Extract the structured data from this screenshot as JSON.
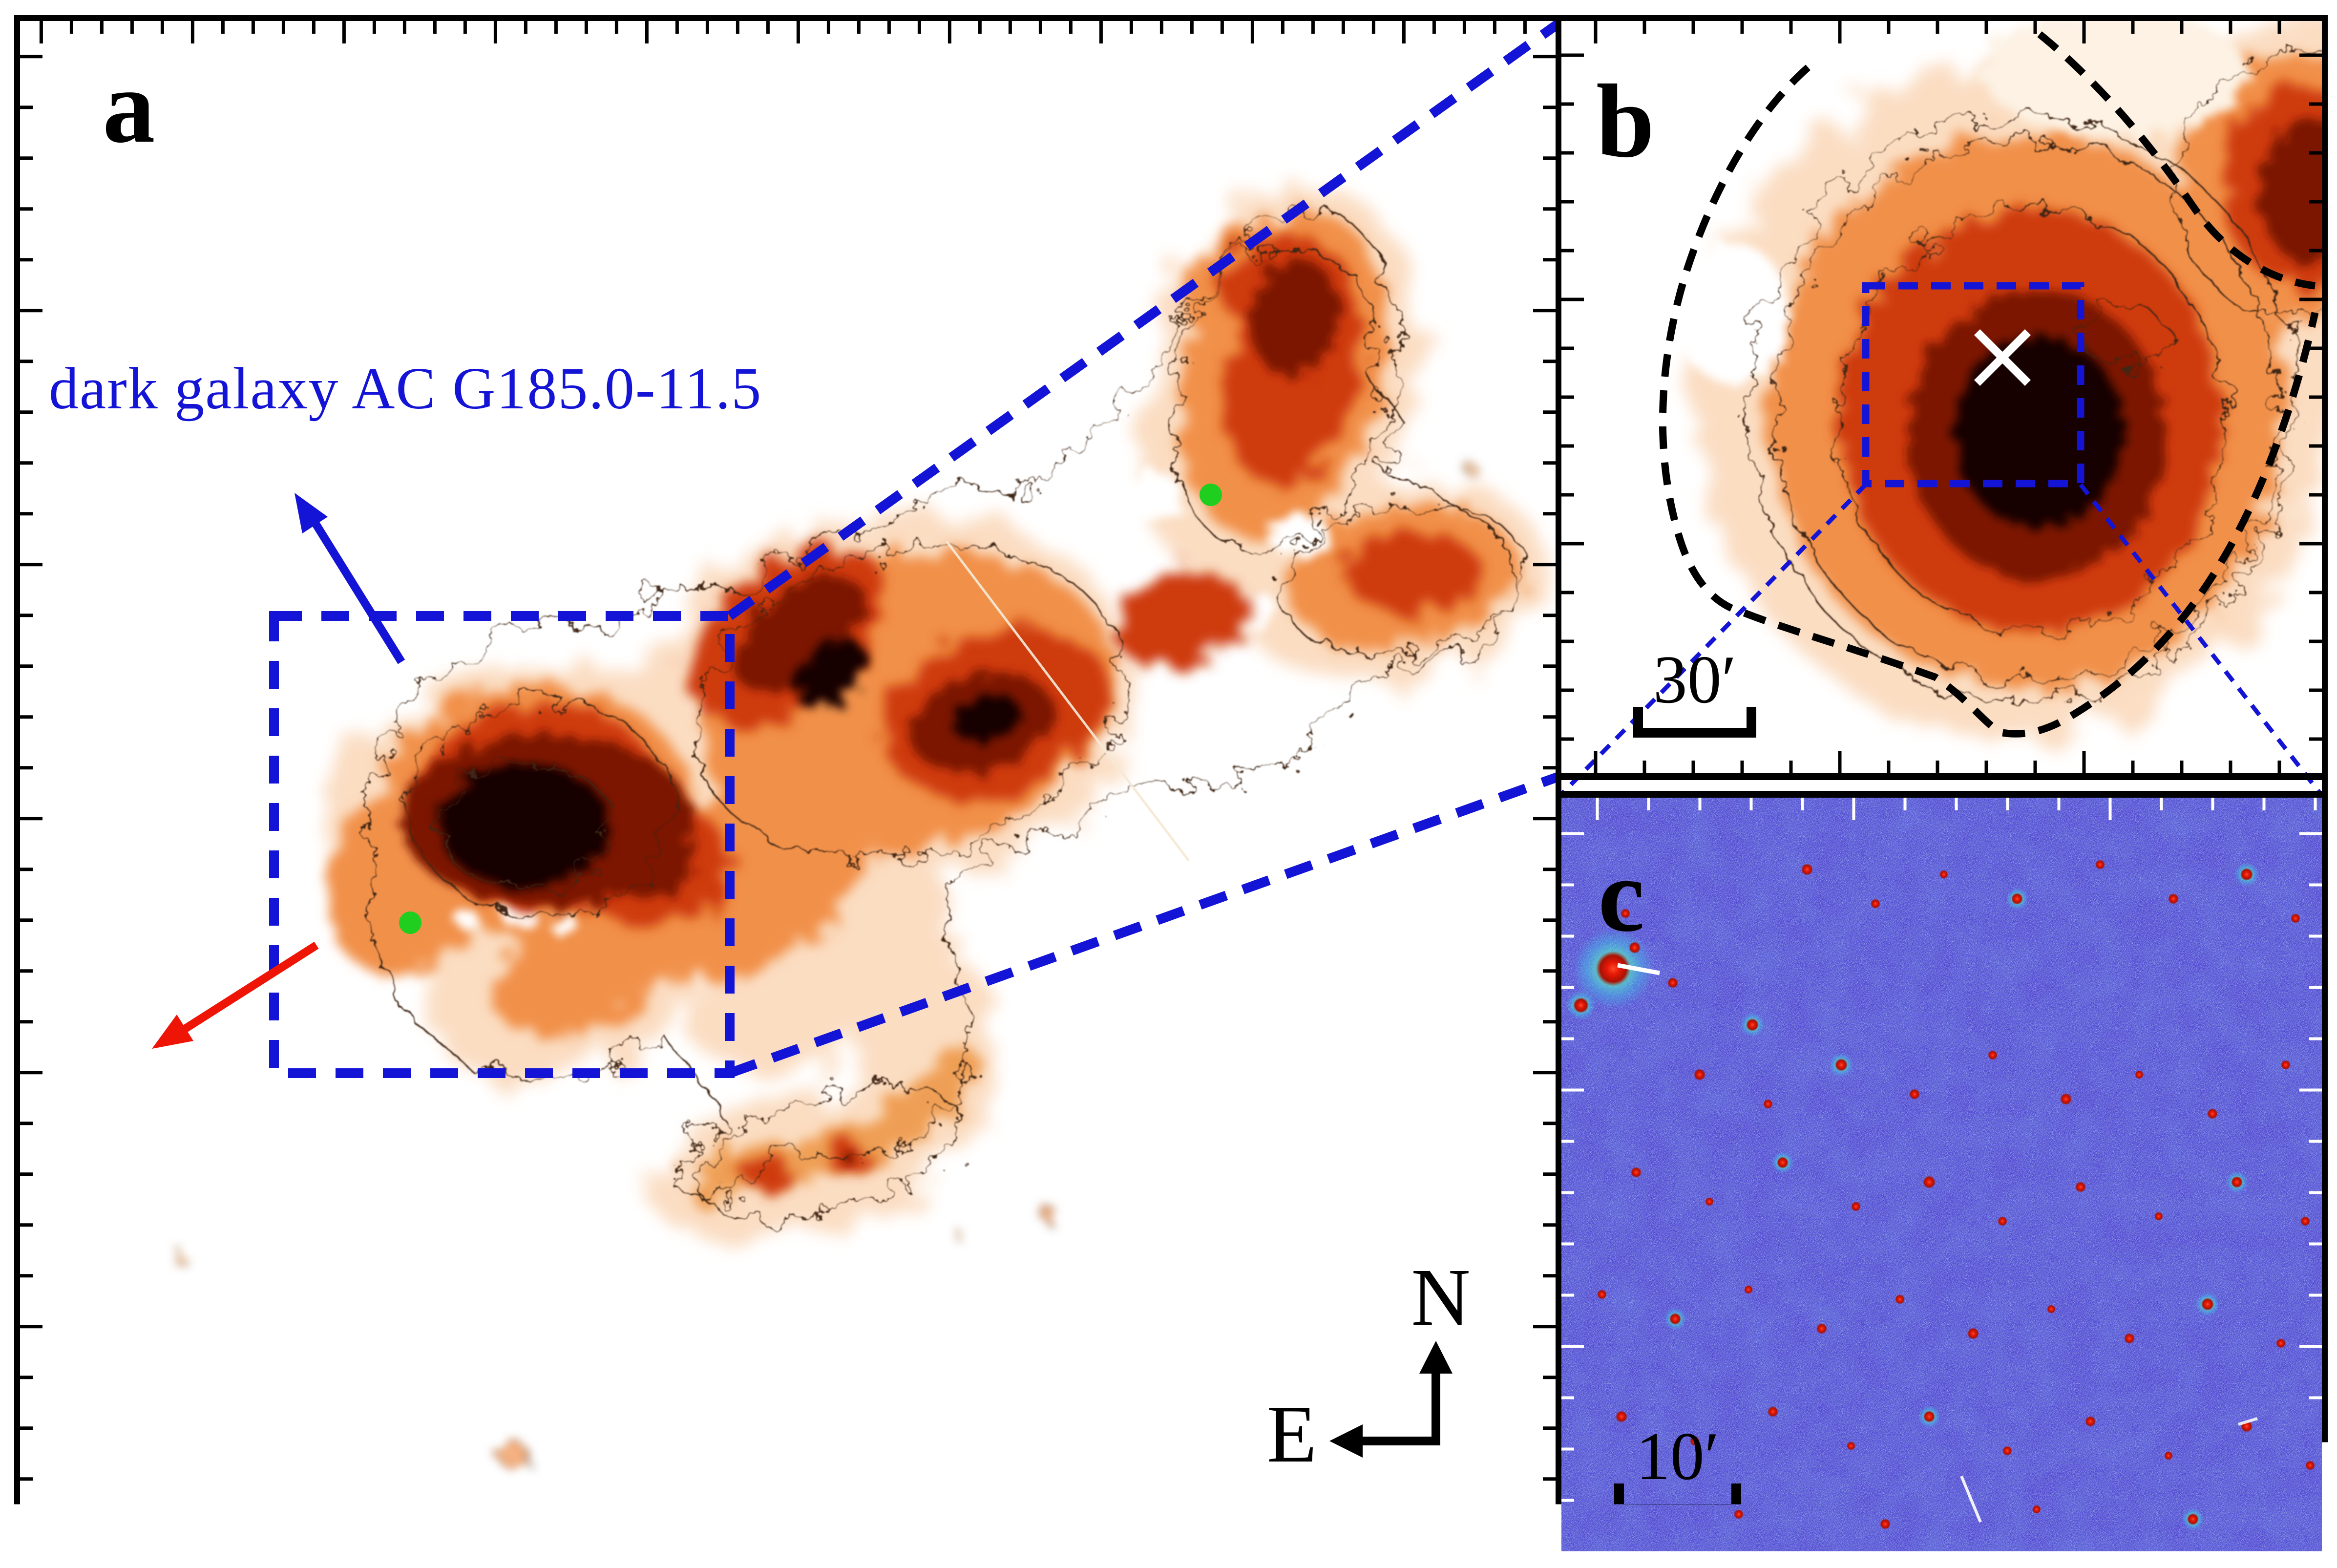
{
  "figure": {
    "panels": {
      "a": {
        "label": "a"
      },
      "b": {
        "label": "b",
        "scale_bar_label": "30′"
      },
      "c": {
        "label": "c",
        "scale_bar_label": "10′"
      }
    },
    "annotation_label": "dark galaxy AC G185.0-11.5",
    "compass": {
      "north": "N",
      "east": "E"
    },
    "markers": {
      "green_dot": "green-dot-marker",
      "white_cross": "white-cross-marker"
    },
    "colors": {
      "annotation_blue": "#1414d6",
      "arrow_red": "#ee1507",
      "marker_green": "#1fce1f",
      "nebula_pale": "#fbddc2",
      "nebula_orange": "#f19048",
      "nebula_red": "#ce3b0b",
      "nebula_maroon": "#7c1303",
      "nebula_black": "#150200",
      "panel_c_base": "#4f43d0",
      "star_red": "#e41807"
    }
  }
}
